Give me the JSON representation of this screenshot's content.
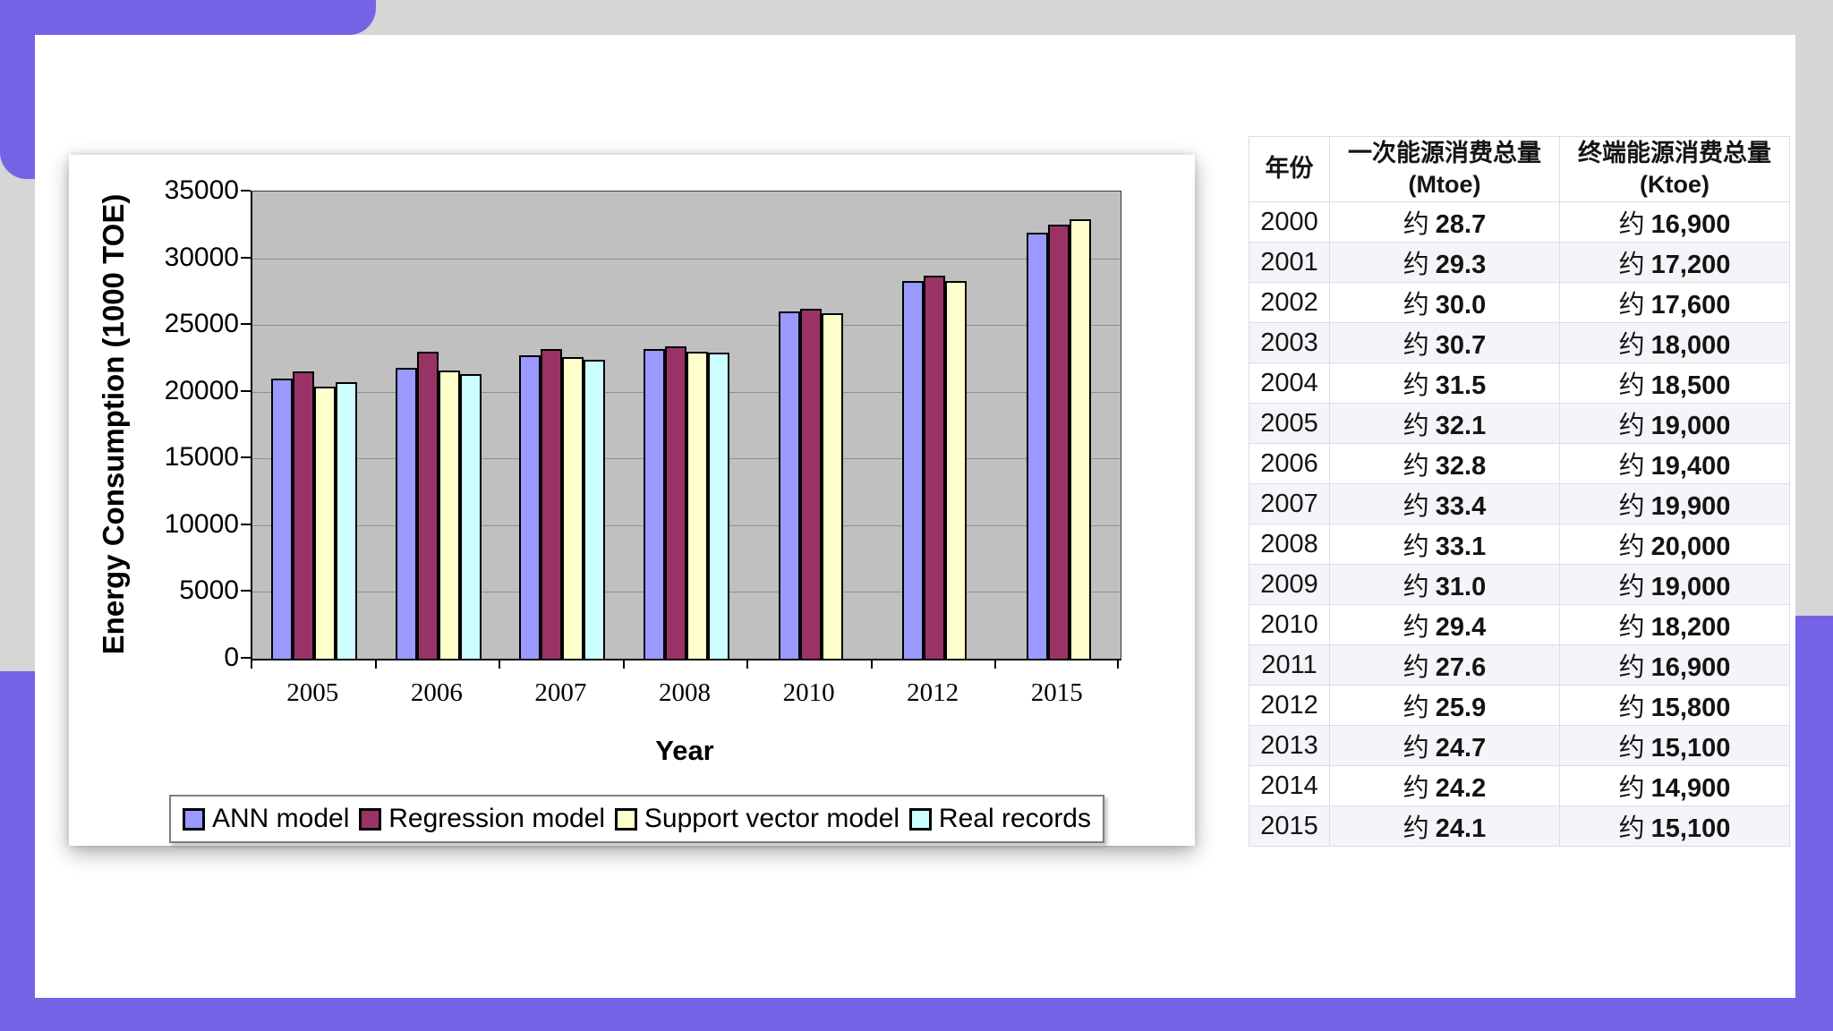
{
  "page": {
    "background": "#D6D6D6",
    "accent": "#7463E4",
    "card": "#FFFFFF",
    "table_alt_row": "#F4F5F8"
  },
  "chart_data": {
    "type": "bar",
    "title": "",
    "xlabel": "Year",
    "ylabel": "Energy Consumption (1000 TOE)",
    "ylim": [
      0,
      35000
    ],
    "ytick_step": 5000,
    "yticks": [
      0,
      5000,
      10000,
      15000,
      20000,
      25000,
      30000,
      35000
    ],
    "categories": [
      "2005",
      "2006",
      "2007",
      "2008",
      "2010",
      "2012",
      "2015"
    ],
    "series": [
      {
        "name": "ANN model",
        "color": "#9999FF",
        "values": [
          21000,
          21800,
          22700,
          23200,
          26000,
          28300,
          31900
        ]
      },
      {
        "name": "Regression model",
        "color": "#993366",
        "values": [
          21500,
          23000,
          23200,
          23400,
          26200,
          28700,
          32500
        ]
      },
      {
        "name": "Support vector model",
        "color": "#FFFFCC",
        "values": [
          20400,
          21600,
          22600,
          23000,
          25900,
          28300,
          32900
        ]
      },
      {
        "name": "Real records",
        "color": "#CCFFFF",
        "values": [
          20700,
          21300,
          22400,
          22900,
          null,
          null,
          null
        ]
      }
    ],
    "plot_bg": "#C0C0C0",
    "gridline_color": "#8F8F8F",
    "grid": true,
    "legend_position": "bottom-outside"
  },
  "table": {
    "columns": [
      {
        "label": "年份",
        "unit": ""
      },
      {
        "label": "一次能源消费总量",
        "unit": "(Mtoe)"
      },
      {
        "label": "终端能源消费总量",
        "unit": "(Ktoe)"
      }
    ],
    "approx_prefix": "约",
    "rows": [
      [
        "2000",
        "28.7",
        "16,900"
      ],
      [
        "2001",
        "29.3",
        "17,200"
      ],
      [
        "2002",
        "30.0",
        "17,600"
      ],
      [
        "2003",
        "30.7",
        "18,000"
      ],
      [
        "2004",
        "31.5",
        "18,500"
      ],
      [
        "2005",
        "32.1",
        "19,000"
      ],
      [
        "2006",
        "32.8",
        "19,400"
      ],
      [
        "2007",
        "33.4",
        "19,900"
      ],
      [
        "2008",
        "33.1",
        "20,000"
      ],
      [
        "2009",
        "31.0",
        "19,000"
      ],
      [
        "2010",
        "29.4",
        "18,200"
      ],
      [
        "2011",
        "27.6",
        "16,900"
      ],
      [
        "2012",
        "25.9",
        "15,800"
      ],
      [
        "2013",
        "24.7",
        "15,100"
      ],
      [
        "2014",
        "24.2",
        "14,900"
      ],
      [
        "2015",
        "24.1",
        "15,100"
      ]
    ]
  }
}
